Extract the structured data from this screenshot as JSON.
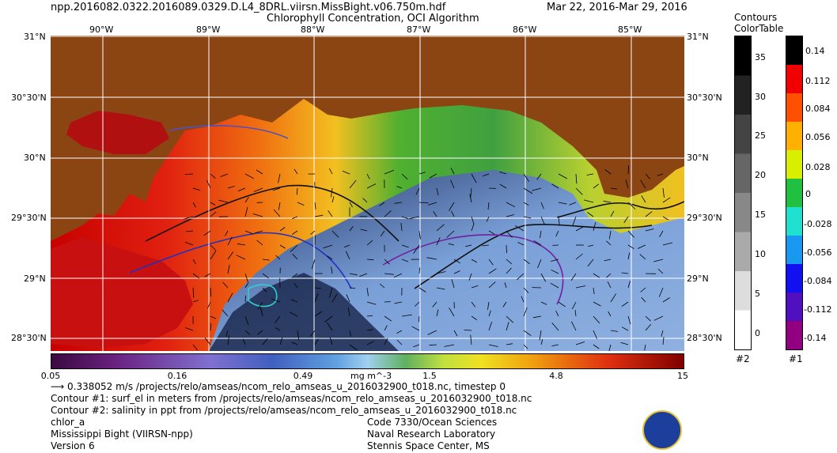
{
  "header": {
    "filename": "npp.2016082.0322.2016089.0329.D.L4_8DRL.viirsn.MissBight.v06.750m.hdf",
    "title": "Chlorophyll Concentration, OCI Algorithm",
    "date_range": "Mar 22, 2016-Mar 29, 2016"
  },
  "map": {
    "lon_labels": [
      "90°W",
      "89°W",
      "88°W",
      "87°W",
      "86°W",
      "85°W"
    ],
    "lat_labels": [
      "31°N",
      "30°30'N",
      "30°N",
      "29°30'N",
      "29°N",
      "28°30'N"
    ],
    "land_color": "#8b4513",
    "grid_color": "#ffffff"
  },
  "colorbar": {
    "ticks": [
      "0.05",
      "0.16",
      "0.49",
      "1.5",
      "4.8",
      "15"
    ],
    "unit": "mg m^-3"
  },
  "contours": {
    "title": "Contours",
    "subtitle": "ColorTable",
    "contour2_labels": [
      "35",
      "30",
      "25",
      "20",
      "15",
      "10",
      "5",
      "0"
    ],
    "contour2_tag": "#2",
    "contour1_labels": [
      "0.14",
      "0.112",
      "0.084",
      "0.056",
      "0.028",
      "0",
      "-0.028",
      "-0.056",
      "-0.084",
      "-0.112",
      "-0.14"
    ],
    "contour1_tag": "#1"
  },
  "footer": {
    "vector_line": "0.338052 m/s /projects/relo/amseas/ncom_relo_amseas_u_2016032900_t018.nc, timestep 0",
    "contour1_line": "Contour #1: surf_el in meters from /projects/relo/amseas/ncom_relo_amseas_u_2016032900_t018.nc",
    "contour2_line": "Contour #2: salinity in ppt from /projects/relo/amseas/ncom_relo_amseas_u_2016032900_t018.nc",
    "product": "chlor_a",
    "region": "Mississippi Bight (VIIRSN-npp)",
    "version": "Version 6",
    "org_code": "Code 7330/Ocean Sciences",
    "org_name": "Naval Research Laboratory",
    "org_place": "Stennis Space Center, MS"
  }
}
